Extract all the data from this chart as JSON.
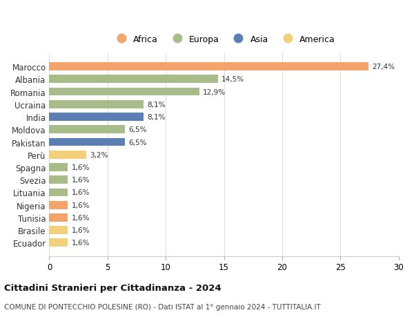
{
  "countries": [
    "Marocco",
    "Albania",
    "Romania",
    "Ucraina",
    "India",
    "Moldova",
    "Pakistan",
    "Perù",
    "Spagna",
    "Svezia",
    "Lituania",
    "Nigeria",
    "Tunisia",
    "Brasile",
    "Ecuador"
  ],
  "values": [
    27.4,
    14.5,
    12.9,
    8.1,
    8.1,
    6.5,
    6.5,
    3.2,
    1.6,
    1.6,
    1.6,
    1.6,
    1.6,
    1.6,
    1.6
  ],
  "labels": [
    "27,4%",
    "14,5%",
    "12,9%",
    "8,1%",
    "8,1%",
    "6,5%",
    "6,5%",
    "3,2%",
    "1,6%",
    "1,6%",
    "1,6%",
    "1,6%",
    "1,6%",
    "1,6%",
    "1,6%"
  ],
  "continents": [
    "Africa",
    "Europa",
    "Europa",
    "Europa",
    "Asia",
    "Europa",
    "Asia",
    "America",
    "Europa",
    "Europa",
    "Europa",
    "Africa",
    "Africa",
    "America",
    "America"
  ],
  "continent_colors": {
    "Africa": "#F4A46A",
    "Europa": "#A8BC8A",
    "Asia": "#5B7FB5",
    "America": "#F5D07A"
  },
  "legend_order": [
    "Africa",
    "Europa",
    "Asia",
    "America"
  ],
  "title": "Cittadini Stranieri per Cittadinanza - 2024",
  "subtitle": "COMUNE DI PONTECCHIO POLESINE (RO) - Dati ISTAT al 1° gennaio 2024 - TUTTITALIA.IT",
  "xlim": [
    0,
    30
  ],
  "xticks": [
    0,
    5,
    10,
    15,
    20,
    25,
    30
  ],
  "background_color": "#ffffff",
  "grid_color": "#dddddd"
}
